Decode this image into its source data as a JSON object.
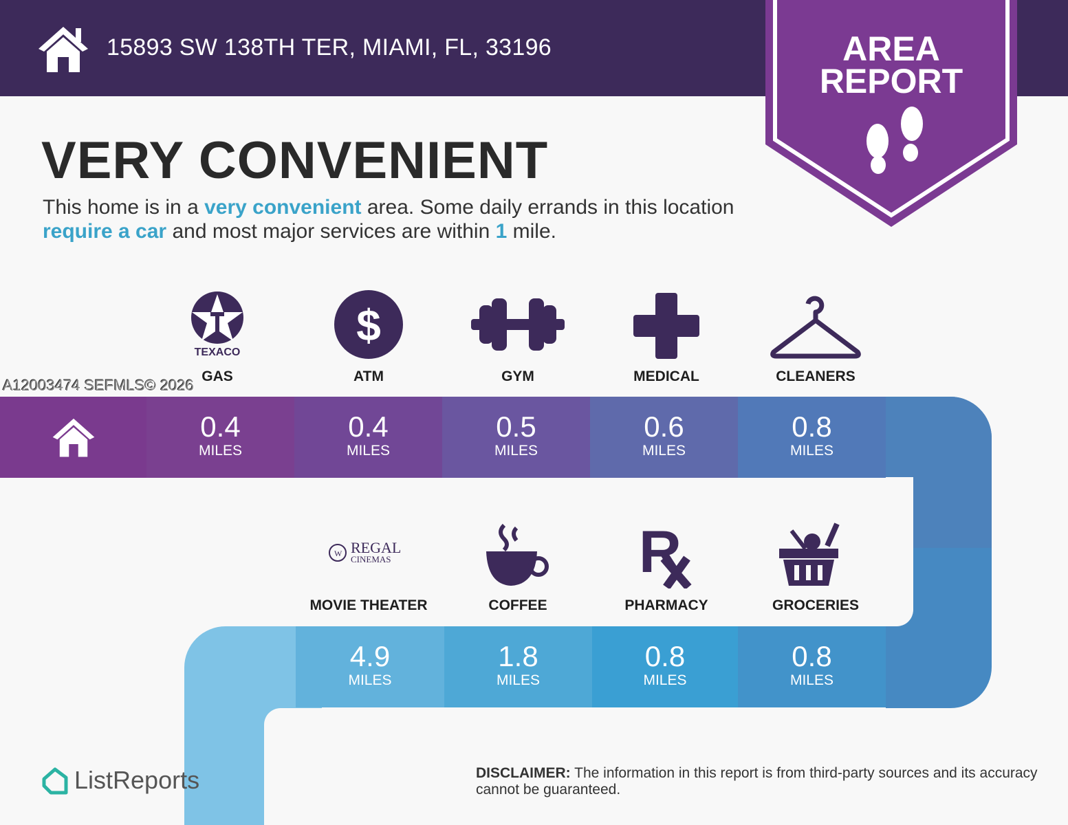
{
  "header": {
    "address": "15893 SW 138TH TER, MIAMI, FL, 33196",
    "icon": "house-icon"
  },
  "badge": {
    "line1": "AREA",
    "line2": "REPORT",
    "icon": "footprints-icon",
    "color": "#7b3a92"
  },
  "headline": "VERY CONVENIENT",
  "description": {
    "p1": "This home is in a ",
    "h1": "very convenient",
    "p2": " area. Some daily errands in this location ",
    "h2": "require a car",
    "p3": " and most major services are within ",
    "h3": "1",
    "p4": " mile."
  },
  "top_row": [
    {
      "label": "GAS",
      "brand": "TEXACO",
      "distance": "0.4",
      "unit": "MILES"
    },
    {
      "label": "ATM",
      "icon": "dollar-icon",
      "distance": "0.4",
      "unit": "MILES"
    },
    {
      "label": "GYM",
      "icon": "dumbbell-icon",
      "distance": "0.5",
      "unit": "MILES"
    },
    {
      "label": "MEDICAL",
      "icon": "cross-icon",
      "distance": "0.6",
      "unit": "MILES"
    },
    {
      "label": "CLEANERS",
      "icon": "hanger-icon",
      "distance": "0.8",
      "unit": "MILES"
    }
  ],
  "bottom_row": [
    {
      "label": "MOVIE THEATER",
      "brand": "REGAL",
      "brand_sub": "CINEMAS",
      "distance": "4.9",
      "unit": "MILES"
    },
    {
      "label": "COFFEE",
      "icon": "coffee-icon",
      "distance": "1.8",
      "unit": "MILES"
    },
    {
      "label": "PHARMACY",
      "icon": "rx-icon",
      "distance": "0.8",
      "unit": "MILES"
    },
    {
      "label": "GROCERIES",
      "icon": "basket-icon",
      "distance": "0.8",
      "unit": "MILES"
    }
  ],
  "watermark": "A12003474  SEFMLS© 2026",
  "footer": {
    "logo": "ListReports",
    "disclaimer_label": "DISCLAIMER:",
    "disclaimer": " The information in this report is from third-party sources and its accuracy cannot be guaranteed."
  }
}
